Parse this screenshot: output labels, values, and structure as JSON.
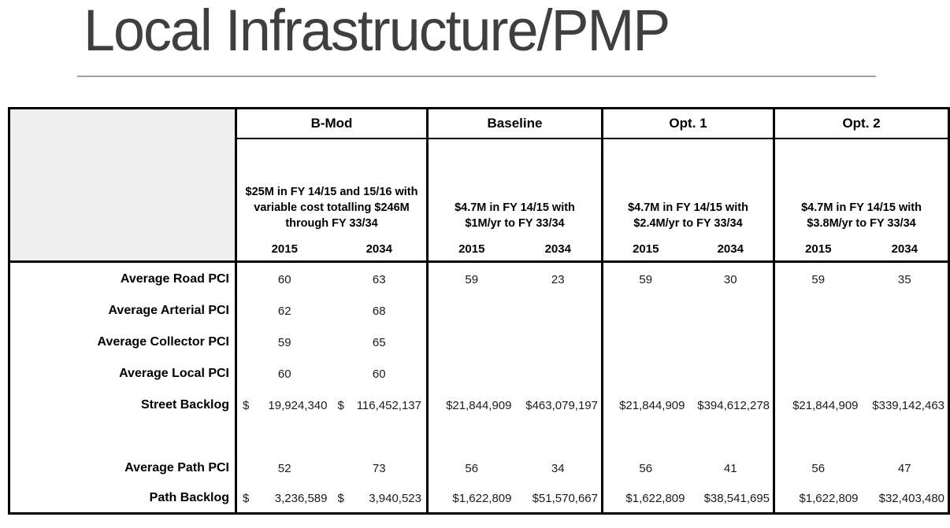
{
  "title": "Local Infrastructure/PMP",
  "colors": {
    "title_text": "#3f3f3f",
    "rule": "#a3a3a3",
    "table_border": "#000000",
    "corner_fill": "#efefef"
  },
  "table": {
    "columns": [
      {
        "name": "B-Mod",
        "desc": "$25M in FY 14/15 and 15/16 with\nvariable cost totalling $246M\nthrough FY 33/34",
        "years": [
          "2015",
          "2034"
        ]
      },
      {
        "name": "Baseline",
        "desc": "$4.7M in FY 14/15 with\n$1M/yr to FY 33/34",
        "years": [
          "2015",
          "2034"
        ]
      },
      {
        "name": "Opt. 1",
        "desc": "$4.7M in FY 14/15 with\n$2.4M/yr to FY 33/34",
        "years": [
          "2015",
          "2034"
        ]
      },
      {
        "name": "Opt. 2",
        "desc": "$4.7M in FY 14/15 with\n$3.8M/yr to FY 33/34",
        "years": [
          "2015",
          "2034"
        ]
      }
    ],
    "rows": [
      {
        "label": "Average Road PCI",
        "cells": [
          {
            "t": "c",
            "v": "60"
          },
          {
            "t": "c",
            "v": "63"
          },
          {
            "t": "c",
            "v": "59"
          },
          {
            "t": "c",
            "v": "23"
          },
          {
            "t": "c",
            "v": "59"
          },
          {
            "t": "c",
            "v": "30"
          },
          {
            "t": "c",
            "v": "59"
          },
          {
            "t": "c",
            "v": "35"
          }
        ]
      },
      {
        "label": "Average Arterial PCI",
        "cells": [
          {
            "t": "c",
            "v": "62"
          },
          {
            "t": "c",
            "v": "68"
          },
          {
            "t": "c",
            "v": ""
          },
          {
            "t": "c",
            "v": ""
          },
          {
            "t": "c",
            "v": ""
          },
          {
            "t": "c",
            "v": ""
          },
          {
            "t": "c",
            "v": ""
          },
          {
            "t": "c",
            "v": ""
          }
        ]
      },
      {
        "label": "Average Collector PCI",
        "cells": [
          {
            "t": "c",
            "v": "59"
          },
          {
            "t": "c",
            "v": "65"
          },
          {
            "t": "c",
            "v": ""
          },
          {
            "t": "c",
            "v": ""
          },
          {
            "t": "c",
            "v": ""
          },
          {
            "t": "c",
            "v": ""
          },
          {
            "t": "c",
            "v": ""
          },
          {
            "t": "c",
            "v": ""
          }
        ]
      },
      {
        "label": "Average Local PCI",
        "cells": [
          {
            "t": "c",
            "v": "60"
          },
          {
            "t": "c",
            "v": "60"
          },
          {
            "t": "c",
            "v": ""
          },
          {
            "t": "c",
            "v": ""
          },
          {
            "t": "c",
            "v": ""
          },
          {
            "t": "c",
            "v": ""
          },
          {
            "t": "c",
            "v": ""
          },
          {
            "t": "c",
            "v": ""
          }
        ]
      },
      {
        "label": "Street Backlog",
        "cells": [
          {
            "t": "a",
            "d": "$",
            "v": "19,924,340"
          },
          {
            "t": "a",
            "d": "$",
            "v": "116,452,137"
          },
          {
            "t": "r",
            "v": "$21,844,909"
          },
          {
            "t": "r",
            "v": "$463,079,197"
          },
          {
            "t": "r",
            "v": "$21,844,909"
          },
          {
            "t": "r",
            "v": "$394,612,278"
          },
          {
            "t": "r",
            "v": "$21,844,909"
          },
          {
            "t": "r",
            "v": "$339,142,463"
          }
        ]
      },
      {
        "label": "",
        "cells": [
          {
            "t": "c",
            "v": ""
          },
          {
            "t": "c",
            "v": ""
          },
          {
            "t": "c",
            "v": ""
          },
          {
            "t": "c",
            "v": ""
          },
          {
            "t": "c",
            "v": ""
          },
          {
            "t": "c",
            "v": ""
          },
          {
            "t": "c",
            "v": ""
          },
          {
            "t": "c",
            "v": ""
          }
        ]
      },
      {
        "label": "Average Path PCI",
        "cells": [
          {
            "t": "c",
            "v": "52"
          },
          {
            "t": "c",
            "v": "73"
          },
          {
            "t": "c",
            "v": "56"
          },
          {
            "t": "c",
            "v": "34"
          },
          {
            "t": "c",
            "v": "56"
          },
          {
            "t": "c",
            "v": "41"
          },
          {
            "t": "c",
            "v": "56"
          },
          {
            "t": "c",
            "v": "47"
          }
        ]
      },
      {
        "label": "Path Backlog",
        "cells": [
          {
            "t": "a",
            "d": "$",
            "v": "3,236,589"
          },
          {
            "t": "a",
            "d": "$",
            "v": "3,940,523"
          },
          {
            "t": "r",
            "v": "$1,622,809"
          },
          {
            "t": "r",
            "v": "$51,570,667"
          },
          {
            "t": "r",
            "v": "$1,622,809"
          },
          {
            "t": "r",
            "v": "$38,541,695"
          },
          {
            "t": "r",
            "v": "$1,622,809"
          },
          {
            "t": "r",
            "v": "$32,403,480"
          }
        ]
      }
    ]
  }
}
